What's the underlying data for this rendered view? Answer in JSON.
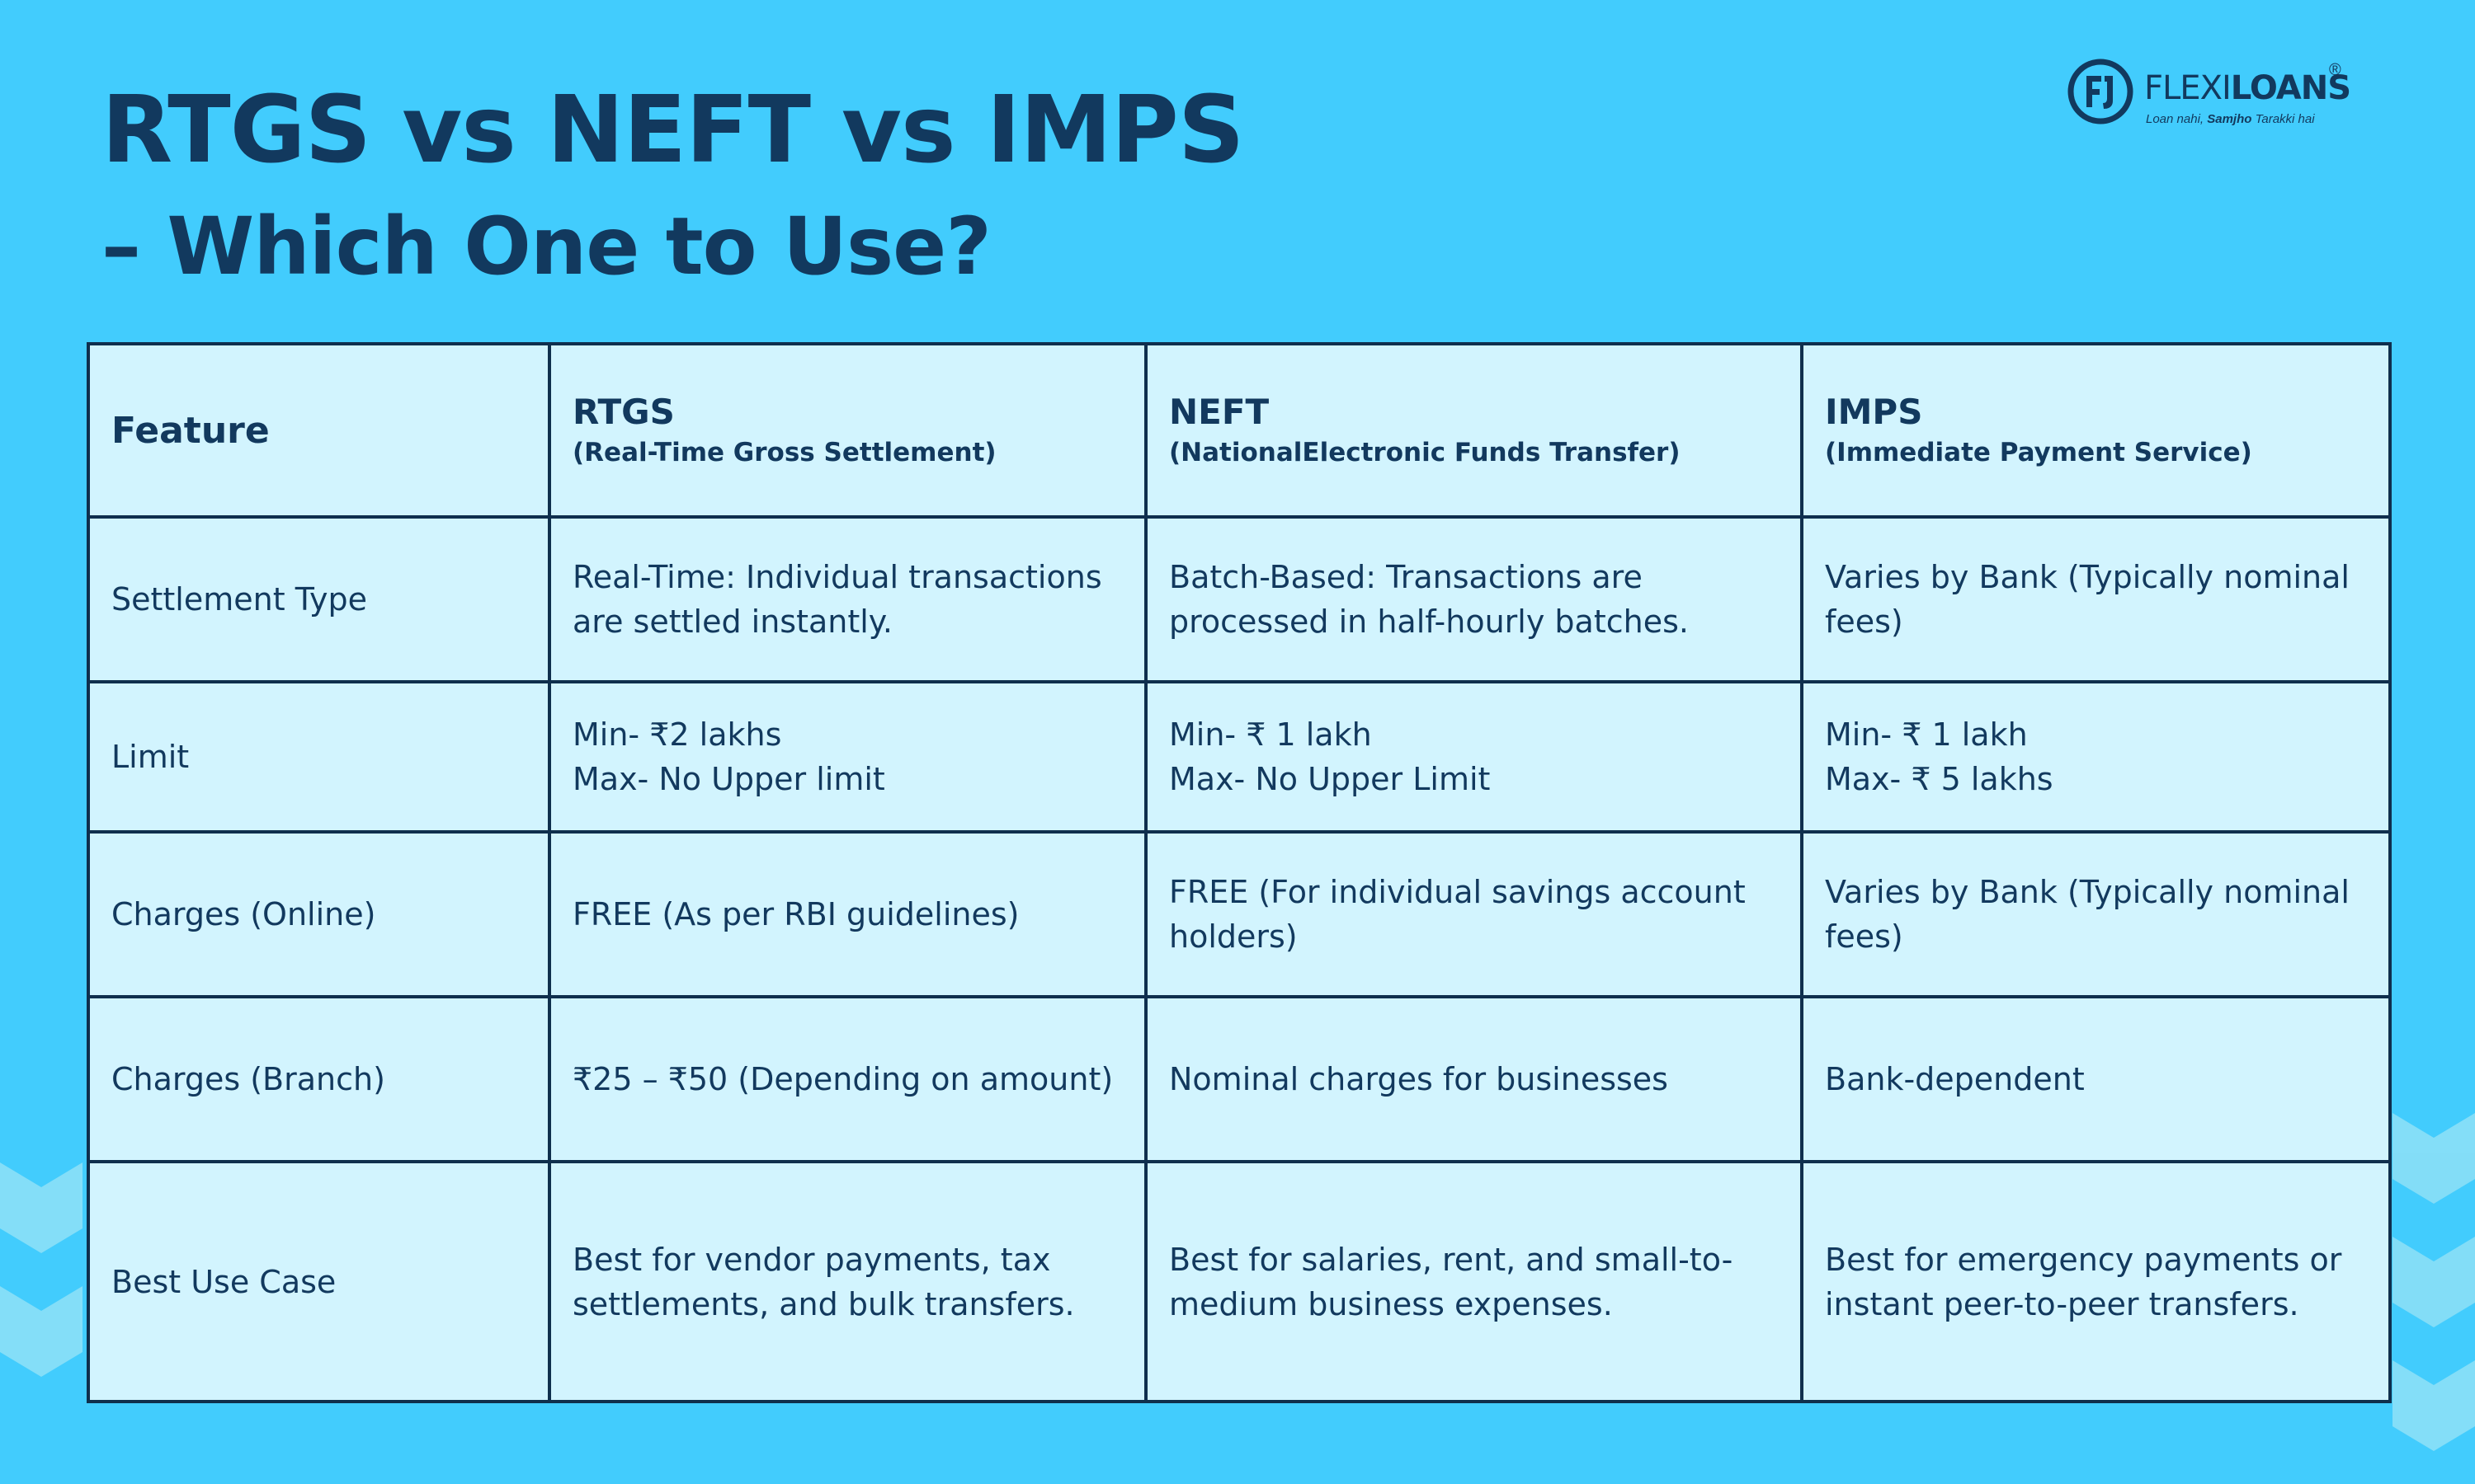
{
  "title": {
    "line1": "RTGS vs NEFT vs IMPS",
    "line2": "– Which One to Use?"
  },
  "logo": {
    "mark": "FJ",
    "word_thin": "FLEXI",
    "word_bold": "LOANS",
    "registered": "®",
    "tagline_pre": "Loan nahi, ",
    "tagline_bold": "Samjho",
    "tagline_post": " Tarakki hai"
  },
  "table": {
    "headers": [
      {
        "main": "Feature",
        "sub": ""
      },
      {
        "main": "RTGS",
        "sub": "(Real-Time Gross Settlement)"
      },
      {
        "main": "NEFT",
        "sub": "(NationalElectronic Funds Transfer)"
      },
      {
        "main": "IMPS",
        "sub": "(Immediate Payment Service)"
      }
    ],
    "rows": [
      {
        "feature": "Settlement Type",
        "rtgs": [
          "Real-Time: Individual transactions",
          "are settled instantly."
        ],
        "neft": [
          "Batch-Based: Transactions are",
          "processed in half-hourly batches."
        ],
        "imps": [
          "Varies by Bank (Typically nominal",
          "fees)"
        ]
      },
      {
        "feature": "Limit",
        "rtgs": [
          "Min- ₹2 lakhs",
          "Max- No Upper limit"
        ],
        "neft": [
          "Min- ₹ 1 lakh",
          "Max- No Upper Limit"
        ],
        "imps": [
          "Min- ₹ 1 lakh",
          "Max- ₹ 5 lakhs"
        ]
      },
      {
        "feature": "Charges (Online)",
        "rtgs": [
          "FREE (As per RBI guidelines)"
        ],
        "neft": [
          "FREE (For individual savings account",
          "holders)"
        ],
        "imps": [
          "Varies by Bank (Typically nominal",
          "fees)"
        ]
      },
      {
        "feature": "Charges (Branch)",
        "rtgs": [
          "₹25 – ₹50 (Depending on amount)"
        ],
        "neft": [
          "Nominal charges for businesses"
        ],
        "imps": [
          "Bank-dependent"
        ]
      },
      {
        "feature": "Best Use Case",
        "rtgs": [
          "Best for vendor payments, tax",
          "settlements, and bulk transfers."
        ],
        "neft": [
          "Best for salaries, rent, and small-to-",
          "medium business expenses."
        ],
        "imps": [
          "Best for emergency payments or",
          "instant peer-to-peer transfers."
        ]
      }
    ]
  },
  "colors": {
    "background": "#42ccfd",
    "table_fill": "#d2f4fe",
    "text": "#12395e",
    "border": "#0f2f4d",
    "zigzag": "#8fe0f7"
  }
}
